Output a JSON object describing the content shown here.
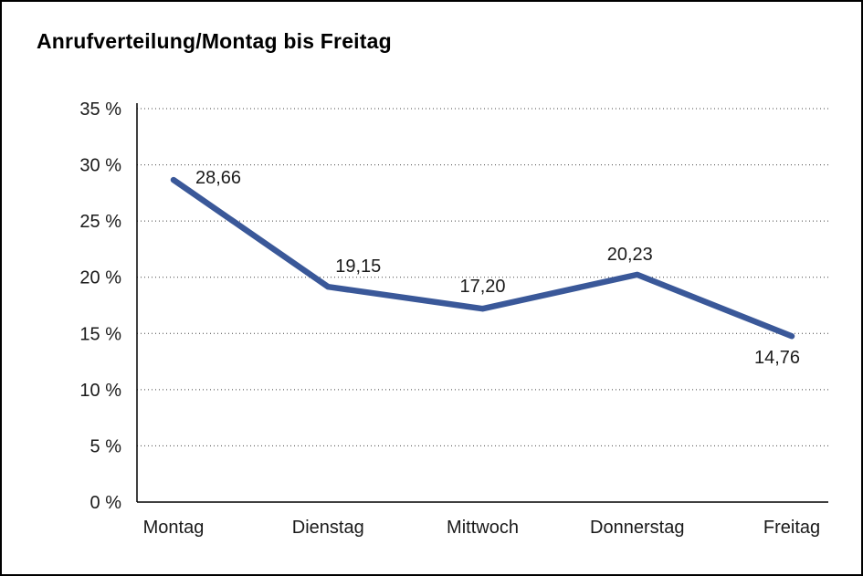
{
  "chart_data": {
    "type": "line",
    "title": "Anrufverteilung/Montag bis Freitag",
    "categories": [
      "Montag",
      "Dienstag",
      "Mittwoch",
      "Donnerstag",
      "Freitag"
    ],
    "values": [
      28.66,
      19.15,
      17.2,
      20.23,
      14.76
    ],
    "value_labels": [
      "28,66",
      "19,15",
      "17,20",
      "20,23",
      "14,76"
    ],
    "ylim": [
      0,
      35
    ],
    "ytick_step": 5,
    "ytick_labels": [
      "0 %",
      "5 %",
      "10 %",
      "15 %",
      "20 %",
      "25 %",
      "30 %",
      "35 %"
    ],
    "grid": "horizontal-dotted",
    "legend": "none",
    "line_color": "#3a5899",
    "axis_color": "#000000",
    "grid_color": "#444444",
    "label_color": "#1a1a1a",
    "xlabel": "",
    "ylabel": ""
  }
}
